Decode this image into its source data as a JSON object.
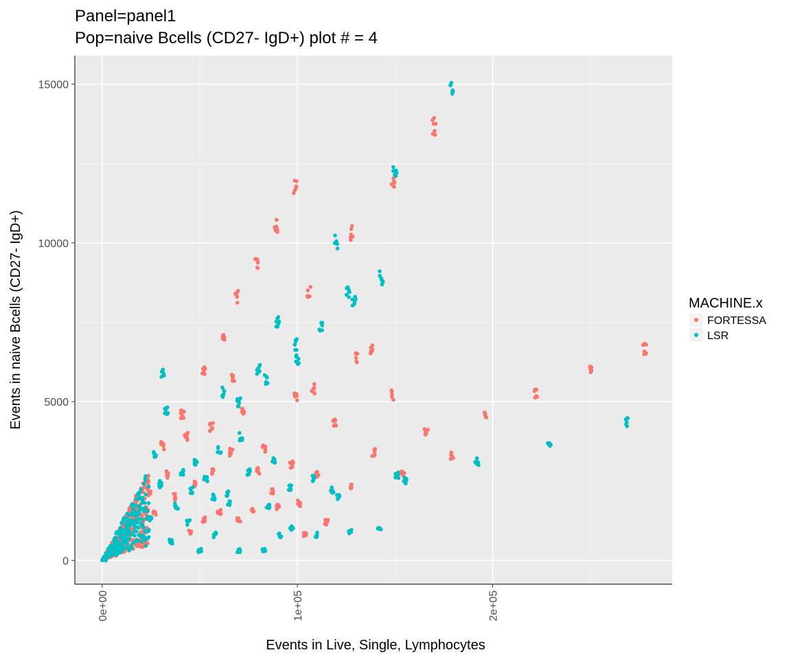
{
  "chart_data": {
    "type": "scatter",
    "title": "Panel=panel1",
    "subtitle": "Pop=naive Bcells (CD27- IgD+) plot # = 4",
    "xlabel": "Events in Live, Single, Lymphocytes",
    "ylabel": "Events in naive Bcells (CD27- IgD+)",
    "xlim": [
      -14000,
      292000
    ],
    "ylim": [
      -750,
      15900
    ],
    "x_ticks": [
      0,
      100000,
      200000
    ],
    "x_tick_labels": [
      "0e+00",
      "1e+05",
      "2e+05"
    ],
    "y_ticks": [
      0,
      5000,
      10000,
      15000
    ],
    "y_tick_labels": [
      "0",
      "5000",
      "10000",
      "15000"
    ],
    "grid": true,
    "legend": {
      "title": "MACHINE.x",
      "position": "right"
    },
    "series": [
      {
        "name": "FORTESSA",
        "color": "#F8766D",
        "clusters": [
          [
            99000,
            11800
          ],
          [
            89000,
            10500
          ],
          [
            79000,
            9400
          ],
          [
            69000,
            8300
          ],
          [
            62000,
            7000
          ],
          [
            52000,
            6000
          ],
          [
            41000,
            4600
          ],
          [
            31000,
            3600
          ],
          [
            106000,
            8500
          ],
          [
            128000,
            10300
          ],
          [
            108000,
            5400
          ],
          [
            99000,
            5200
          ],
          [
            130000,
            6400
          ],
          [
            138000,
            6600
          ],
          [
            149000,
            12000
          ],
          [
            149000,
            5200
          ],
          [
            170000,
            13700
          ],
          [
            166000,
            4000
          ],
          [
            179000,
            3300
          ],
          [
            196000,
            4650
          ],
          [
            222000,
            5250
          ],
          [
            250000,
            6000
          ],
          [
            278000,
            6650
          ],
          [
            119000,
            4300
          ],
          [
            110000,
            2700
          ],
          [
            127000,
            2300
          ],
          [
            139000,
            3400
          ],
          [
            154000,
            2700
          ],
          [
            101000,
            1800
          ],
          [
            104000,
            800
          ],
          [
            115000,
            1200
          ],
          [
            97000,
            3000
          ],
          [
            87000,
            2200
          ],
          [
            83000,
            3500
          ],
          [
            77000,
            1600
          ],
          [
            72000,
            4700
          ],
          [
            67000,
            5700
          ],
          [
            57000,
            2800
          ],
          [
            47000,
            2400
          ],
          [
            43000,
            3900
          ],
          [
            37000,
            2000
          ],
          [
            33000,
            2700
          ],
          [
            27000,
            1500
          ],
          [
            24000,
            2200
          ],
          [
            19000,
            1600
          ],
          [
            16000,
            1200
          ],
          [
            12000,
            1000
          ],
          [
            9000,
            700
          ],
          [
            6000,
            400
          ],
          [
            3000,
            150
          ],
          [
            22000,
            500
          ],
          [
            45000,
            900
          ],
          [
            52000,
            1300
          ],
          [
            60000,
            1500
          ],
          [
            70000,
            1300
          ],
          [
            80000,
            2800
          ],
          [
            90000,
            1700
          ],
          [
            56000,
            4200
          ],
          [
            66000,
            3400
          ]
        ]
      },
      {
        "name": "LSR",
        "color": "#00BFC4",
        "clusters": [
          [
            179000,
            14900
          ],
          [
            150000,
            12300
          ],
          [
            120000,
            10000
          ],
          [
            126000,
            8400
          ],
          [
            143000,
            8900
          ],
          [
            129000,
            8100
          ],
          [
            90000,
            7500
          ],
          [
            112000,
            7300
          ],
          [
            99000,
            6800
          ],
          [
            100000,
            6300
          ],
          [
            80000,
            6000
          ],
          [
            84000,
            5700
          ],
          [
            31000,
            5900
          ],
          [
            33000,
            4700
          ],
          [
            70000,
            5000
          ],
          [
            62000,
            5300
          ],
          [
            192000,
            3100
          ],
          [
            229000,
            3700
          ],
          [
            269000,
            4350
          ],
          [
            151000,
            2700
          ],
          [
            155000,
            2500
          ],
          [
            142000,
            1000
          ],
          [
            127000,
            900
          ],
          [
            110000,
            800
          ],
          [
            97000,
            1000
          ],
          [
            96000,
            2300
          ],
          [
            88000,
            3200
          ],
          [
            85000,
            1700
          ],
          [
            83000,
            300
          ],
          [
            75000,
            2800
          ],
          [
            70000,
            300
          ],
          [
            64000,
            2100
          ],
          [
            60000,
            3500
          ],
          [
            58000,
            800
          ],
          [
            53000,
            2600
          ],
          [
            50000,
            300
          ],
          [
            46000,
            2200
          ],
          [
            44000,
            1200
          ],
          [
            41000,
            2800
          ],
          [
            38000,
            1700
          ],
          [
            35000,
            600
          ],
          [
            30000,
            2400
          ],
          [
            27000,
            3300
          ],
          [
            25000,
            1300
          ],
          [
            22000,
            700
          ],
          [
            19000,
            2000
          ],
          [
            16000,
            1500
          ],
          [
            13000,
            1000
          ],
          [
            10000,
            700
          ],
          [
            7000,
            400
          ],
          [
            4000,
            200
          ],
          [
            1500,
            60
          ],
          [
            118000,
            2200
          ],
          [
            121000,
            2000
          ],
          [
            108000,
            2600
          ],
          [
            91000,
            800
          ],
          [
            65000,
            1800
          ],
          [
            57000,
            2000
          ],
          [
            48000,
            3100
          ],
          [
            71000,
            3900
          ]
        ]
      }
    ]
  }
}
